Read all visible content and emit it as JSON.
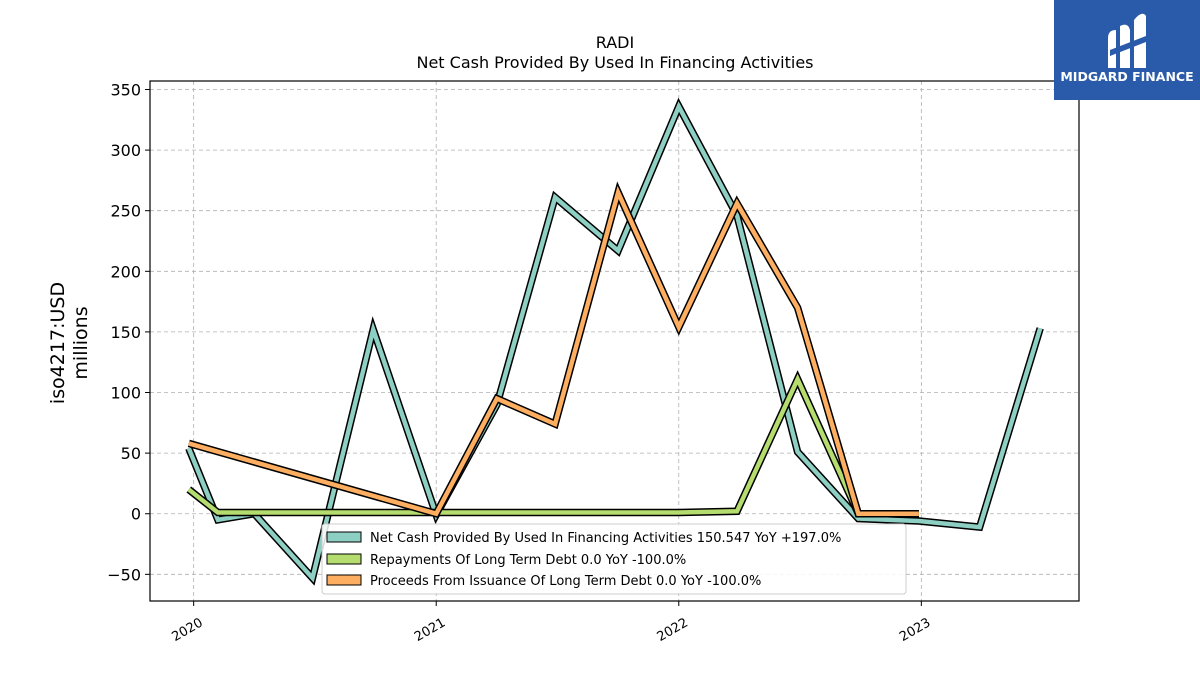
{
  "chart_data": {
    "type": "line",
    "title": "RADI",
    "subtitle": "Net Cash Provided By Used In Financing Activities",
    "ylabel_line1": "iso4217:USD",
    "ylabel_line2": "millions",
    "xlim": [
      2019.82,
      2023.65
    ],
    "ylim": [
      -72,
      357
    ],
    "y_ticks": [
      -50,
      0,
      50,
      100,
      150,
      200,
      250,
      300,
      350
    ],
    "y_tick_labels": [
      "−50",
      "0",
      "50",
      "100",
      "150",
      "200",
      "250",
      "300",
      "350"
    ],
    "x_ticks": [
      2020,
      2021,
      2022,
      2023
    ],
    "x_tick_labels": [
      "2020",
      "2021",
      "2022",
      "2023"
    ],
    "grid": true,
    "legend_position": "bottom-center",
    "series": [
      {
        "name": "Net Cash Provided By Used In Financing Activities",
        "legend": "Net Cash Provided By Used In Financing Activities  150.547 YoY +197.0%",
        "color": "#8ecfc3",
        "x": [
          2019.98,
          2020.1,
          2020.25,
          2020.49,
          2020.74,
          2021.0,
          2021.25,
          2021.49,
          2021.75,
          2022.0,
          2022.24,
          2022.49,
          2022.74,
          2022.99,
          2023.24,
          2023.49
        ],
        "y": [
          54,
          -5,
          0,
          -53,
          152,
          -1,
          90,
          261,
          217,
          336,
          246,
          51,
          -4,
          -6,
          -11,
          153
        ]
      },
      {
        "name": "Repayments Of Long Term Debt",
        "legend": "Repayments Of Long Term Debt  0.0 YoY -100.0%",
        "color": "#b5dc6e",
        "x": [
          2019.98,
          2020.1,
          2020.25,
          2020.49,
          2020.74,
          2021.0,
          2021.25,
          2021.49,
          2021.75,
          2022.0,
          2022.24,
          2022.49,
          2022.74,
          2022.99
        ],
        "y": [
          20,
          1,
          1,
          1,
          1,
          1,
          1,
          1,
          1,
          1,
          2,
          111,
          0,
          0
        ]
      },
      {
        "name": "Proceeds From Issuance Of Long Term Debt",
        "legend": "Proceeds From Issuance Of Long Term Debt  0.0 YoY -100.0%",
        "color": "#fdae61",
        "x": [
          2019.98,
          2021.0,
          2021.25,
          2021.49,
          2021.75,
          2022.0,
          2022.24,
          2022.49,
          2022.74,
          2022.99
        ],
        "y": [
          58,
          0,
          95,
          74,
          265,
          154,
          256,
          170,
          0,
          0
        ]
      }
    ]
  },
  "logo": {
    "text": "MIDGARD FINANCE",
    "background": "#2a5bab"
  }
}
